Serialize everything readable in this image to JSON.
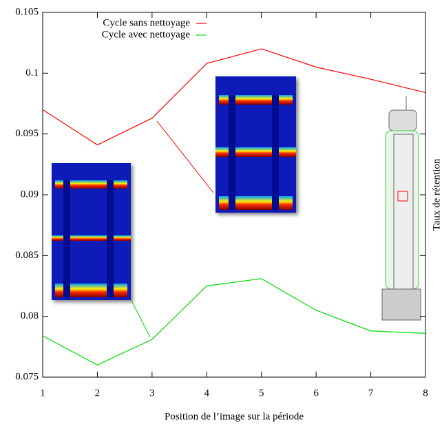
{
  "chart_data": {
    "type": "line",
    "xlabel": "Position de l’image sur la période",
    "ylabel": "Taux de rétention",
    "x": [
      1,
      2,
      3,
      4,
      5,
      6,
      7,
      8
    ],
    "series": [
      {
        "name": "Cycle sans nettoyage",
        "color": "#ff0000",
        "values": [
          0.097,
          0.0941,
          0.0963,
          0.1008,
          0.102,
          0.1005,
          0.0995,
          0.0984
        ]
      },
      {
        "name": "Cycle avec nettoyage",
        "color": "#00dd00",
        "values": [
          0.0784,
          0.076,
          0.0781,
          0.0825,
          0.0831,
          0.0805,
          0.0788,
          0.0786
        ]
      }
    ],
    "xlim": [
      1,
      8
    ],
    "xticks": [
      1,
      2,
      3,
      4,
      5,
      6,
      7,
      8
    ],
    "ylim": [
      0.075,
      0.105
    ],
    "yticks": [
      0.075,
      0.08,
      0.085,
      0.09,
      0.095,
      0.1,
      0.105
    ],
    "legend": "top-left"
  }
}
